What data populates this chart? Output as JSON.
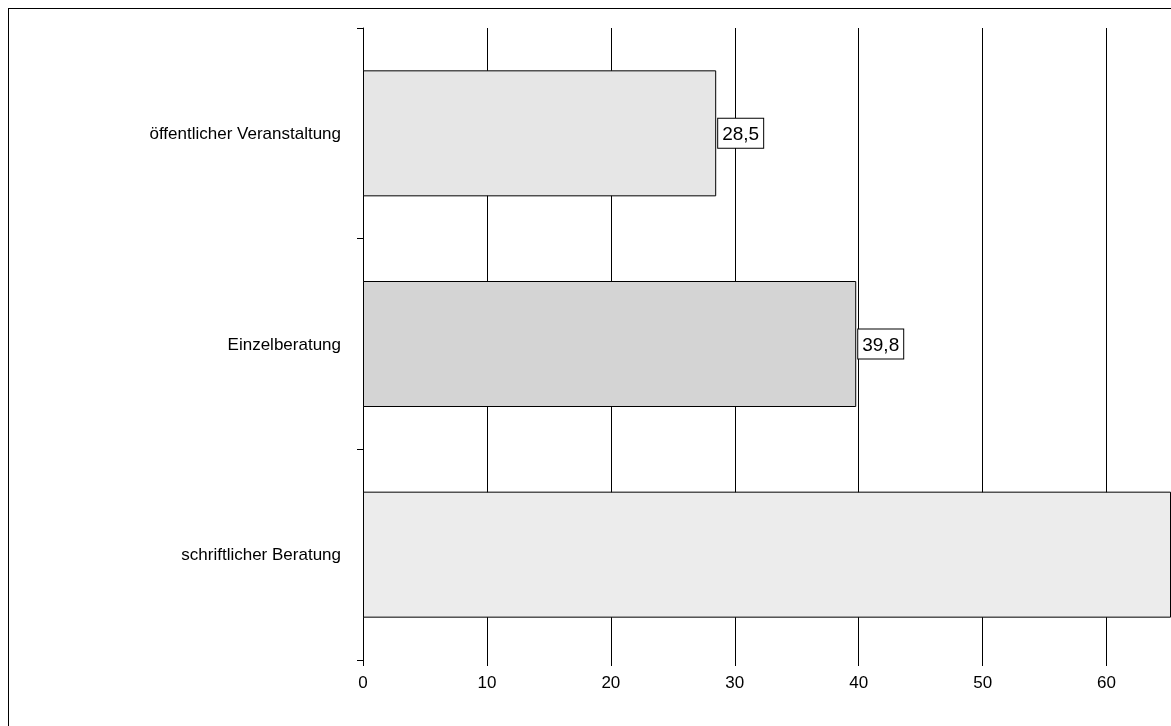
{
  "chart_data": {
    "type": "bar",
    "orientation": "horizontal",
    "categories": [
      "öffentlicher Veranstaltung",
      "Einzelberatung",
      "schriftlicher Beratung"
    ],
    "values": [
      28.5,
      39.8,
      65.2
    ],
    "colors": [
      "#e6e6e6",
      "#d4d4d4",
      "#ececec"
    ],
    "value_labels": [
      "28,5",
      "39,8",
      null
    ],
    "xlim": [
      0,
      65.2
    ],
    "xticks": [
      0,
      10,
      20,
      30,
      40,
      50,
      60
    ],
    "grid": "x"
  }
}
